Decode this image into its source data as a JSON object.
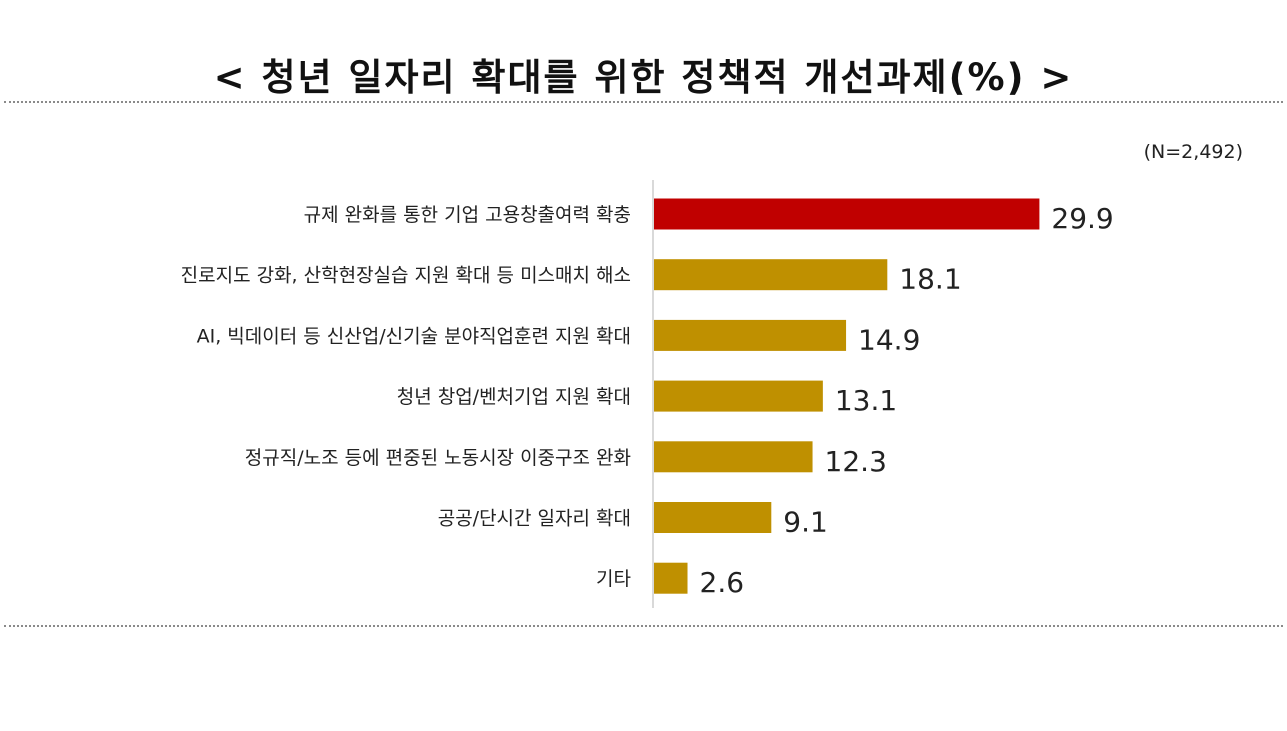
{
  "title": "< 청년 일자리 확대를 위한 정책적 개선과제(%) >",
  "sample_note": "(N=2,492)",
  "colors": {
    "highlight_bar": "#c00000",
    "bar": "#bf9000",
    "axis": "#d9d9d9"
  },
  "chart_data": {
    "type": "bar",
    "orientation": "horizontal",
    "title": "< 청년 일자리 확대를 위한 정책적 개선과제(%) >",
    "categories": [
      "규제 완화를 통한 기업 고용창출여력 확충",
      "진로지도 강화, 산학현장실습 지원 확대 등 미스매치 해소",
      "AI, 빅데이터 등 신산업/신기술 분야직업훈련 지원 확대",
      "청년 창업/벤처기업 지원 확대",
      "정규직/노조 등에 편중된 노동시장 이중구조 완화",
      "공공/단시간 일자리 확대",
      "기타"
    ],
    "values": [
      29.9,
      18.1,
      14.9,
      13.1,
      12.3,
      9.1,
      2.6
    ],
    "value_labels": [
      "29.9",
      "18.1",
      "14.9",
      "13.1",
      "12.3",
      "9.1",
      "2.6"
    ],
    "highlight_index": 0,
    "xlabel": "",
    "ylabel": "",
    "grid": false,
    "legend": "none"
  }
}
